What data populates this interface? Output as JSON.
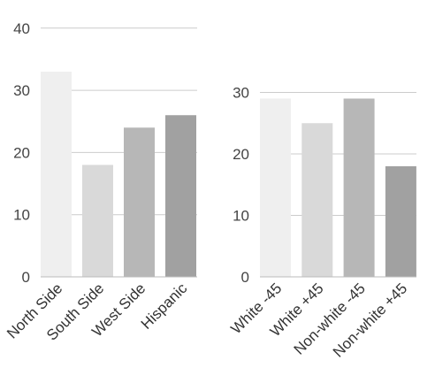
{
  "chart_data": [
    {
      "type": "bar",
      "categories": [
        "North Side",
        "South Side",
        "West Side",
        "Hispanic"
      ],
      "values": [
        33,
        18,
        24,
        26
      ],
      "ylim": [
        0,
        40
      ],
      "yticks": [
        "0",
        "10",
        "20",
        "30",
        "40"
      ],
      "grid": true,
      "colors": [
        "#efefef",
        "#d9d9d9",
        "#b7b7b7",
        "#a1a1a1"
      ]
    },
    {
      "type": "bar",
      "categories": [
        "White -45",
        "White +45",
        "Non-white -45",
        "Non-white +45"
      ],
      "values": [
        29,
        25,
        29,
        18
      ],
      "ylim": [
        0,
        30
      ],
      "yticks": [
        "0",
        "10",
        "20",
        "30"
      ],
      "grid": true,
      "colors": [
        "#efefef",
        "#d9d9d9",
        "#b7b7b7",
        "#a1a1a1"
      ]
    }
  ]
}
